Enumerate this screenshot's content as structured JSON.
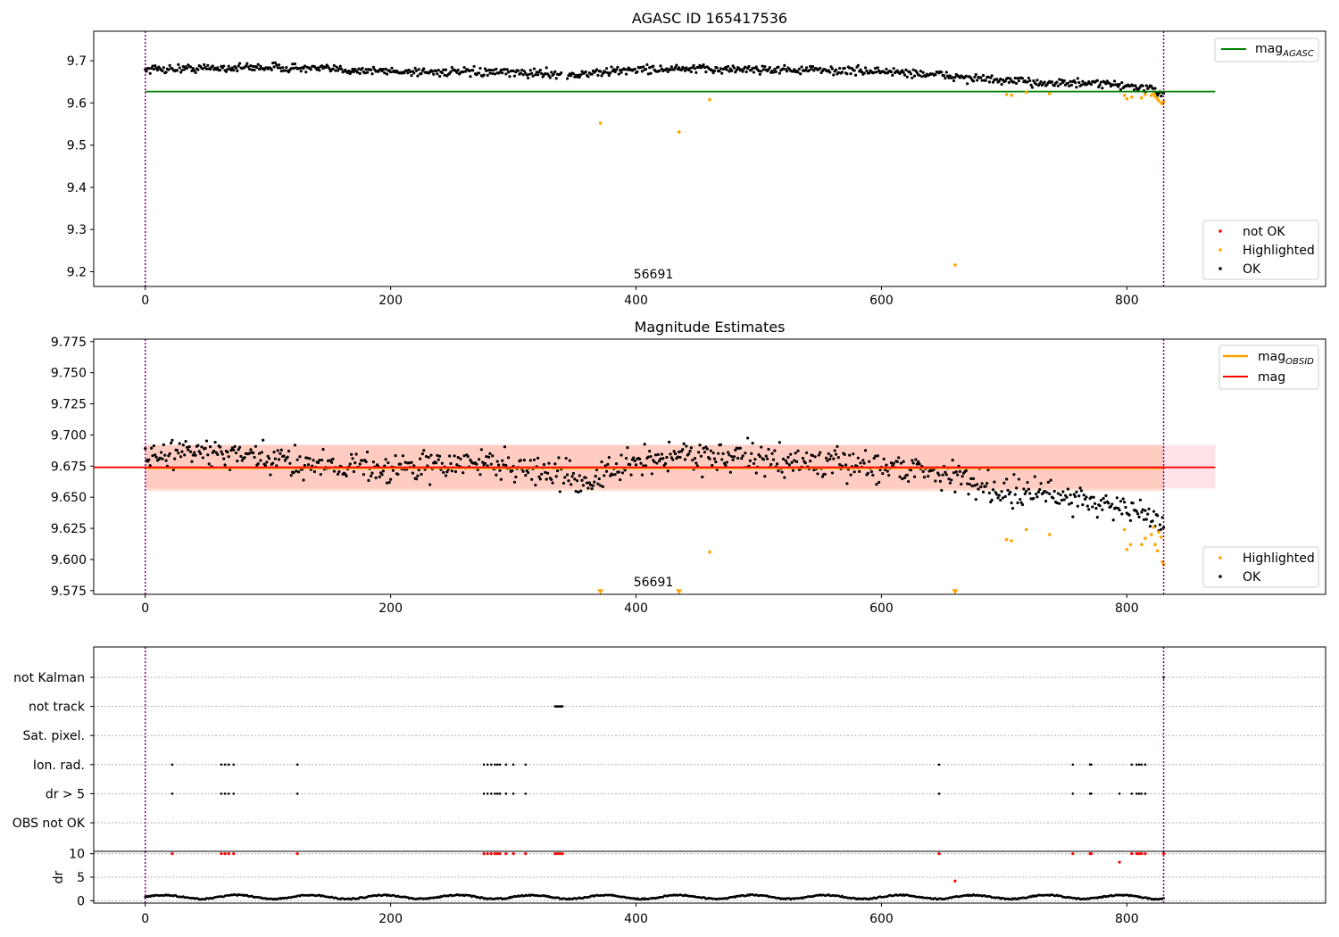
{
  "chart_data": [
    {
      "type": "scatter",
      "title": "AGASC ID 165417536",
      "xlim": [
        -42,
        962
      ],
      "ylim": [
        9.165,
        9.77
      ],
      "xticks": [
        0,
        200,
        400,
        600,
        800
      ],
      "yticks": [
        9.2,
        9.3,
        9.4,
        9.5,
        9.6,
        9.7
      ],
      "ytick_labels": [
        "9.2",
        "9.3",
        "9.4",
        "9.5",
        "9.6",
        "9.7"
      ],
      "hline": {
        "name": "mag_AGASC",
        "label_main": "mag",
        "label_sub": "AGASC",
        "y": 9.627,
        "x": [
          0,
          872
        ],
        "color": "#008000"
      },
      "vlines": [
        0,
        830
      ],
      "annotation": {
        "text": "56691",
        "x": 415,
        "y": 9.18
      },
      "legend_top": [
        {
          "label": "mag",
          "sub": "AGASC",
          "color": "#008000",
          "kind": "line"
        }
      ],
      "legend_bottom": [
        {
          "label": "not OK",
          "color": "#ff0000",
          "kind": "dot"
        },
        {
          "label": "Highlighted",
          "color": "#ffa500",
          "kind": "dot"
        },
        {
          "label": "OK",
          "color": "#000000",
          "kind": "dot"
        }
      ],
      "series": [
        {
          "name": "OK",
          "color": "#000000",
          "segments": [
            [
              0,
              9.68
            ],
            [
              100,
              9.685
            ],
            [
              200,
              9.675
            ],
            [
              335,
              9.67
            ],
            [
              345,
              9.665
            ],
            [
              400,
              9.68
            ],
            [
              500,
              9.68
            ],
            [
              600,
              9.675
            ],
            [
              640,
              9.668
            ],
            [
              700,
              9.652
            ],
            [
              800,
              9.642
            ],
            [
              830,
              9.625
            ]
          ],
          "noise": 0.011
        },
        {
          "name": "Highlighted",
          "color": "#ffa500",
          "points": [
            [
              371,
              9.552
            ],
            [
              435,
              9.531
            ],
            [
              460,
              9.608
            ],
            [
              660,
              9.216
            ],
            [
              702,
              9.62
            ],
            [
              706,
              9.618
            ],
            [
              718,
              9.625
            ],
            [
              737,
              9.622
            ],
            [
              798,
              9.618
            ],
            [
              800,
              9.61
            ],
            [
              804,
              9.614
            ],
            [
              812,
              9.612
            ],
            [
              815,
              9.62
            ],
            [
              820,
              9.618
            ],
            [
              822,
              9.622
            ],
            [
              823,
              9.615
            ],
            [
              825,
              9.61
            ],
            [
              826,
              9.605
            ],
            [
              828,
              9.6
            ],
            [
              829,
              9.598
            ],
            [
              830,
              9.603
            ]
          ]
        }
      ]
    },
    {
      "type": "scatter",
      "title": "Magnitude Estimates",
      "xlim": [
        -42,
        962
      ],
      "ylim": [
        9.572,
        9.777
      ],
      "xticks": [
        0,
        200,
        400,
        600,
        800
      ],
      "yticks": [
        9.575,
        9.6,
        9.625,
        9.65,
        9.675,
        9.7,
        9.725,
        9.75,
        9.775
      ],
      "ytick_labels": [
        "9.575",
        "9.600",
        "9.625",
        "9.650",
        "9.675",
        "9.700",
        "9.725",
        "9.750",
        "9.775"
      ],
      "bands": [
        {
          "x": [
            0,
            872
          ],
          "y": [
            9.657,
            9.692
          ],
          "color": "#ffc0cb",
          "opacity": 0.45
        },
        {
          "x": [
            0,
            830
          ],
          "y": [
            9.655,
            9.692
          ],
          "color": "#ffa07a",
          "opacity": 0.35
        }
      ],
      "hlines": [
        {
          "name": "mag_OBSID",
          "y": 9.6735,
          "x": [
            0,
            830
          ],
          "color": "#ffa500"
        },
        {
          "name": "mag",
          "y": 9.674,
          "x": [
            -42,
            872
          ],
          "color": "#ff0000"
        }
      ],
      "vlines": [
        0,
        830
      ],
      "annotation": {
        "text": "56691",
        "x": 415,
        "y": 9.582
      },
      "legend_top": [
        {
          "label": "mag",
          "sub": "OBSID",
          "color": "#ffa500",
          "kind": "line"
        },
        {
          "label": "mag",
          "sub": "",
          "color": "#ff0000",
          "kind": "line"
        }
      ],
      "legend_bottom": [
        {
          "label": "Highlighted",
          "color": "#ffa500",
          "kind": "dot"
        },
        {
          "label": "OK",
          "color": "#000000",
          "kind": "dot"
        }
      ],
      "series": [
        {
          "name": "OK",
          "color": "#000000",
          "segments": [
            [
              0,
              9.678
            ],
            [
              30,
              9.688
            ],
            [
              100,
              9.68
            ],
            [
              200,
              9.673
            ],
            [
              280,
              9.678
            ],
            [
              340,
              9.668
            ],
            [
              360,
              9.662
            ],
            [
              400,
              9.678
            ],
            [
              440,
              9.685
            ],
            [
              500,
              9.68
            ],
            [
              600,
              9.675
            ],
            [
              640,
              9.672
            ],
            [
              700,
              9.655
            ],
            [
              760,
              9.65
            ],
            [
              800,
              9.64
            ],
            [
              830,
              9.63
            ]
          ],
          "noise": 0.013
        },
        {
          "name": "Highlighted",
          "color": "#ffa500",
          "points": [
            [
              460,
              9.606
            ],
            [
              702,
              9.616
            ],
            [
              706,
              9.615
            ],
            [
              718,
              9.624
            ],
            [
              737,
              9.62
            ],
            [
              798,
              9.624
            ],
            [
              800,
              9.608
            ],
            [
              803,
              9.612
            ],
            [
              812,
              9.612
            ],
            [
              815,
              9.617
            ],
            [
              820,
              9.62
            ],
            [
              822,
              9.626
            ],
            [
              823,
              9.612
            ],
            [
              825,
              9.607
            ],
            [
              826,
              9.622
            ],
            [
              828,
              9.618
            ],
            [
              829,
              9.598
            ],
            [
              830,
              9.596
            ]
          ]
        },
        {
          "name": "Highlighted (off-scale)",
          "color": "#ffa500",
          "marker": "triangle-down",
          "points": [
            [
              371,
              9.574
            ],
            [
              435,
              9.574
            ],
            [
              660,
              9.574
            ]
          ]
        }
      ]
    },
    {
      "type": "scatter",
      "title": "",
      "xlim": [
        -42,
        962
      ],
      "categories": [
        "not Kalman",
        "not track",
        "Sat. pixel.",
        "Ion. rad.",
        "dr > 5",
        "OBS not OK"
      ],
      "vlines": [
        0,
        830
      ],
      "flag_points": {
        "not Kalman": [
          830
        ],
        "not track": [
          334,
          335,
          336,
          337,
          338,
          339,
          340
        ],
        "Sat. pixel.": [],
        "Ion. rad.": [
          22,
          62,
          65,
          68,
          72,
          124,
          276,
          279,
          282,
          285,
          287,
          289,
          294,
          300,
          310,
          647,
          756,
          770,
          771,
          804,
          808,
          810,
          812,
          815
        ],
        "dr > 5": [
          22,
          62,
          65,
          68,
          72,
          124,
          276,
          279,
          282,
          285,
          287,
          289,
          294,
          300,
          310,
          647,
          756,
          770,
          771,
          794,
          804,
          808,
          810,
          812,
          815
        ],
        "OBS not OK": []
      }
    },
    {
      "type": "scatter",
      "title": "",
      "ylabel": "dr",
      "xlim": [
        -42,
        962
      ],
      "ylim": [
        -0.5,
        10.5
      ],
      "xticks": [
        0,
        200,
        400,
        600,
        800
      ],
      "yticks": [
        0,
        5,
        10
      ],
      "ytick_labels": [
        "0",
        "5",
        "10"
      ],
      "vlines": [
        0,
        830
      ],
      "series": [
        {
          "name": "dr",
          "color": "#000000",
          "base": 0.45,
          "amplitude": 0.45,
          "period": 60
        },
        {
          "name": "dr > 5",
          "color": "#ff0000",
          "points": [
            [
              22,
              10
            ],
            [
              62,
              10
            ],
            [
              65,
              10
            ],
            [
              68,
              10
            ],
            [
              72,
              10
            ],
            [
              124,
              10
            ],
            [
              276,
              10
            ],
            [
              279,
              10
            ],
            [
              282,
              10
            ],
            [
              285,
              10
            ],
            [
              287,
              10
            ],
            [
              289,
              10
            ],
            [
              294,
              10
            ],
            [
              300,
              10
            ],
            [
              310,
              10
            ],
            [
              334,
              10
            ],
            [
              336,
              10
            ],
            [
              338,
              10
            ],
            [
              340,
              10
            ],
            [
              647,
              10
            ],
            [
              660,
              4.2
            ],
            [
              756,
              10
            ],
            [
              770,
              10
            ],
            [
              771,
              10
            ],
            [
              794,
              8.2
            ],
            [
              804,
              10
            ],
            [
              808,
              10
            ],
            [
              810,
              10
            ],
            [
              812,
              10
            ],
            [
              815,
              10
            ],
            [
              830,
              10
            ]
          ]
        }
      ]
    }
  ]
}
